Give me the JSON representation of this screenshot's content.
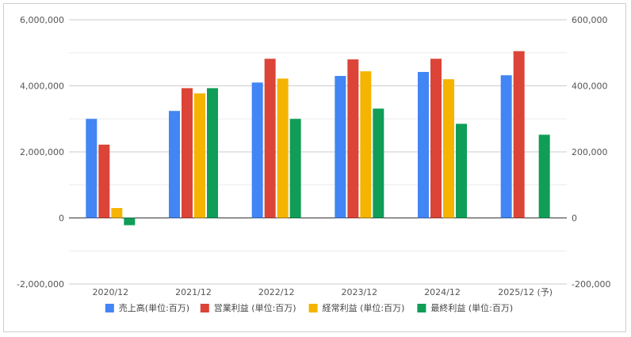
{
  "chart_data": {
    "type": "bar",
    "categories": [
      "2020/12",
      "2021/12",
      "2022/12",
      "2023/12",
      "2024/12",
      "2025/12 (予)"
    ],
    "series": [
      {
        "name": "売上高(単位:百万)",
        "axis": "left",
        "color": "#4285f4",
        "values": [
          3000000,
          3240000,
          4100000,
          4300000,
          4420000,
          4320000
        ]
      },
      {
        "name": "営業利益 (単位:百万)",
        "axis": "right",
        "color": "#db4437",
        "values": [
          222000,
          393000,
          482000,
          480000,
          482000,
          505000
        ]
      },
      {
        "name": "経常利益 (単位:百万)",
        "axis": "right",
        "color": "#f4b400",
        "values": [
          30000,
          377000,
          422000,
          444000,
          420000,
          null
        ]
      },
      {
        "name": "最終利益 (単位:百万)",
        "axis": "right",
        "color": "#0f9d58",
        "values": [
          -22000,
          393000,
          300000,
          331000,
          285000,
          252000
        ]
      }
    ],
    "y_left": {
      "ticks": [
        "6,000,000",
        "4,000,000",
        "2,000,000",
        "0",
        "-2,000,000"
      ],
      "range": [
        -2000000,
        6000000
      ]
    },
    "y_right": {
      "ticks": [
        "600,000",
        "400,000",
        "200,000",
        "0",
        "-200,000"
      ],
      "range": [
        -200000,
        600000
      ]
    },
    "grid": true,
    "legend_position": "bottom",
    "title": "",
    "xlabel": "",
    "ylabel": ""
  }
}
